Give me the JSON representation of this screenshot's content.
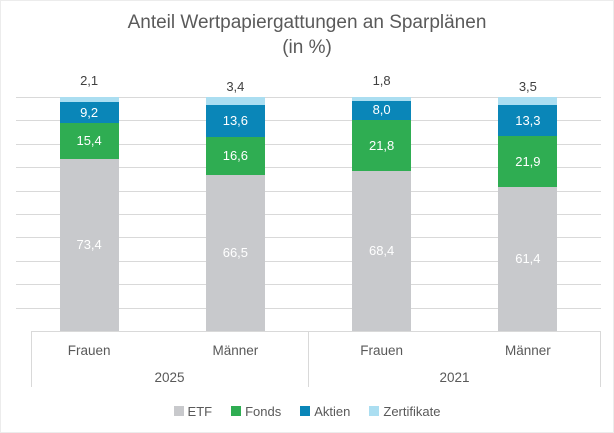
{
  "title": {
    "line1": "Anteil Wertpapiergattungen an Sparplänen",
    "line2": "(in %)"
  },
  "chart_data": {
    "type": "bar",
    "stacked": true,
    "title": "Anteil Wertpapiergattungen an Sparplänen (in %)",
    "value_unit": "%",
    "number_format": "de-comma",
    "categories": [
      "Frauen",
      "Männer",
      "Frauen",
      "Männer"
    ],
    "groups": [
      {
        "label": "2025",
        "categories": [
          "Frauen",
          "Männer"
        ]
      },
      {
        "label": "2021",
        "categories": [
          "Frauen",
          "Männer"
        ]
      }
    ],
    "series": [
      {
        "name": "ETF",
        "color": "#c8c9cc",
        "label_color": "#ffffff",
        "label_position": "inside",
        "values": [
          73.4,
          66.5,
          68.4,
          61.4
        ]
      },
      {
        "name": "Fonds",
        "color": "#2fad52",
        "label_color": "#ffffff",
        "label_position": "inside",
        "values": [
          15.4,
          16.6,
          21.8,
          21.9
        ]
      },
      {
        "name": "Aktien",
        "color": "#0a86b8",
        "label_color": "#ffffff",
        "label_position": "inside",
        "values": [
          9.2,
          13.6,
          8.0,
          13.3
        ]
      },
      {
        "name": "Zertifikate",
        "color": "#abdef1",
        "label_color": "#404040",
        "label_position": "outside-end",
        "values": [
          2.1,
          3.4,
          1.8,
          3.5
        ]
      }
    ],
    "ylim": [
      0,
      100
    ],
    "gridlines": {
      "step": 10,
      "color": "#d9d9d9",
      "visible": true
    },
    "y_axis_labels_visible": false,
    "legend_position": "bottom"
  },
  "colors": {
    "title_text": "#5a5a5a",
    "axis_text": "#595959",
    "outside_label_text": "#404040",
    "gridline": "#d9d9d9",
    "background": "#ffffff"
  }
}
